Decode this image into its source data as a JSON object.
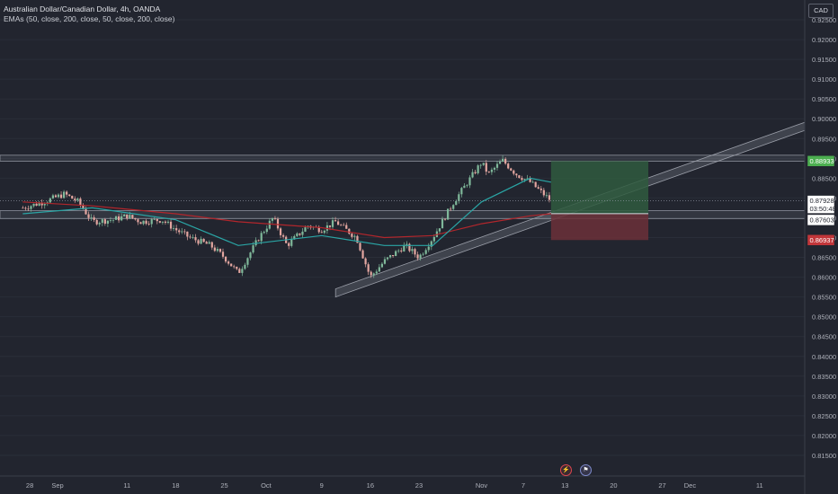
{
  "header": {
    "symbol_line": "Australian Dollar/Canadian Dollar, 4h, OANDA",
    "indicator_line": "EMAs (50, close, 200, close, 50, close, 200, close)"
  },
  "currency": "CAD",
  "icons": [
    "flash-icon",
    "flag-icon"
  ],
  "colors": {
    "background": "#22252f",
    "candle_up": "#7fb89a",
    "candle_down": "#e3a6a0",
    "ema50": "#2aa5a5",
    "ema200": "#b2262c",
    "target_zone": "#2f5a3e",
    "stop_zone": "#6b3038",
    "target_tag": "#4caf50",
    "stop_tag": "#c2363a"
  },
  "price_tags": {
    "target": "0.88933",
    "current": "0.87928",
    "countdown": "03:50:48",
    "entry": "0.87603",
    "stop": "0.86937"
  },
  "chart_data": {
    "type": "candlestick",
    "symbol": "Australian Dollar/Canadian Dollar",
    "timeframe": "4h",
    "source": "OANDA",
    "y_ticks": [
      "0.92500",
      "0.92000",
      "0.91500",
      "0.91000",
      "0.90500",
      "0.90000",
      "0.89500",
      "0.89000",
      "0.88500",
      "0.88000",
      "0.87500",
      "0.87000",
      "0.86500",
      "0.86000",
      "0.85500",
      "0.85000",
      "0.84500",
      "0.84000",
      "0.83500",
      "0.83000",
      "0.82500",
      "0.82000",
      "0.81500"
    ],
    "ylim": [
      0.8125,
      0.9275
    ],
    "x_ticks": [
      "28",
      "Sep",
      "11",
      "18",
      "25",
      "Oct",
      "9",
      "16",
      "23",
      "Nov",
      "7",
      "13",
      "20",
      "27",
      "Dec",
      "11"
    ],
    "close_path": [
      [
        "Aug 27",
        0.8775
      ],
      [
        "Aug 30",
        0.879
      ],
      [
        "Sep 2",
        0.881
      ],
      [
        "Sep 4",
        0.879
      ],
      [
        "Sep 6",
        0.874
      ],
      [
        "Sep 9",
        0.8745
      ],
      [
        "Sep 11",
        0.8755
      ],
      [
        "Sep 13",
        0.874
      ],
      [
        "Sep 16",
        0.8745
      ],
      [
        "Sep 18",
        0.872
      ],
      [
        "Sep 20",
        0.87
      ],
      [
        "Sep 23",
        0.868
      ],
      [
        "Sep 25",
        0.865
      ],
      [
        "Sep 27",
        0.861
      ],
      [
        "Sep 30",
        0.87
      ],
      [
        "Oct 2",
        0.875
      ],
      [
        "Oct 4",
        0.868
      ],
      [
        "Oct 7",
        0.873
      ],
      [
        "Oct 9",
        0.872
      ],
      [
        "Oct 11",
        0.874
      ],
      [
        "Oct 14",
        0.87
      ],
      [
        "Oct 16",
        0.86
      ],
      [
        "Oct 18",
        0.864
      ],
      [
        "Oct 21",
        0.868
      ],
      [
        "Oct 23",
        0.865
      ],
      [
        "Oct 25",
        0.87
      ],
      [
        "Oct 28",
        0.879
      ],
      [
        "Oct 30",
        0.884
      ],
      [
        "Nov 1",
        0.889
      ],
      [
        "Nov 2",
        0.886
      ],
      [
        "Nov 4",
        0.8895
      ],
      [
        "Nov 6",
        0.886
      ],
      [
        "Nov 8",
        0.884
      ],
      [
        "Nov 11",
        0.8793
      ]
    ],
    "ema50_path": [
      [
        "Aug 27",
        0.876
      ],
      [
        "Sep 6",
        0.8775
      ],
      [
        "Sep 18",
        0.8745
      ],
      [
        "Sep 27",
        0.868
      ],
      [
        "Oct 9",
        0.8705
      ],
      [
        "Oct 18",
        0.868
      ],
      [
        "Oct 25",
        0.868
      ],
      [
        "Nov 1",
        0.879
      ],
      [
        "Nov 8",
        0.885
      ],
      [
        "Nov 11",
        0.884
      ]
    ],
    "ema200_path": [
      [
        "Aug 27",
        0.879
      ],
      [
        "Sep 6",
        0.878
      ],
      [
        "Sep 18",
        0.876
      ],
      [
        "Sep 27",
        0.874
      ],
      [
        "Oct 9",
        0.8725
      ],
      [
        "Oct 18",
        0.87
      ],
      [
        "Oct 25",
        0.8705
      ],
      [
        "Nov 1",
        0.8735
      ],
      [
        "Nov 8",
        0.8755
      ],
      [
        "Nov 11",
        0.876
      ]
    ],
    "horizontal_zones": [
      {
        "from": 0.8893,
        "to": 0.8908
      },
      {
        "from": 0.8748,
        "to": 0.8768
      }
    ],
    "trend_channel": [
      {
        "from": [
          "Oct 11",
          0.855
        ],
        "to": [
          "Dec 15",
          0.8955
        ]
      }
    ],
    "position": {
      "type": "long",
      "entry": 0.87603,
      "target": 0.88933,
      "stop": 0.86937,
      "from": "Nov 11",
      "to": "Nov 25"
    },
    "last_price": 0.87928
  }
}
